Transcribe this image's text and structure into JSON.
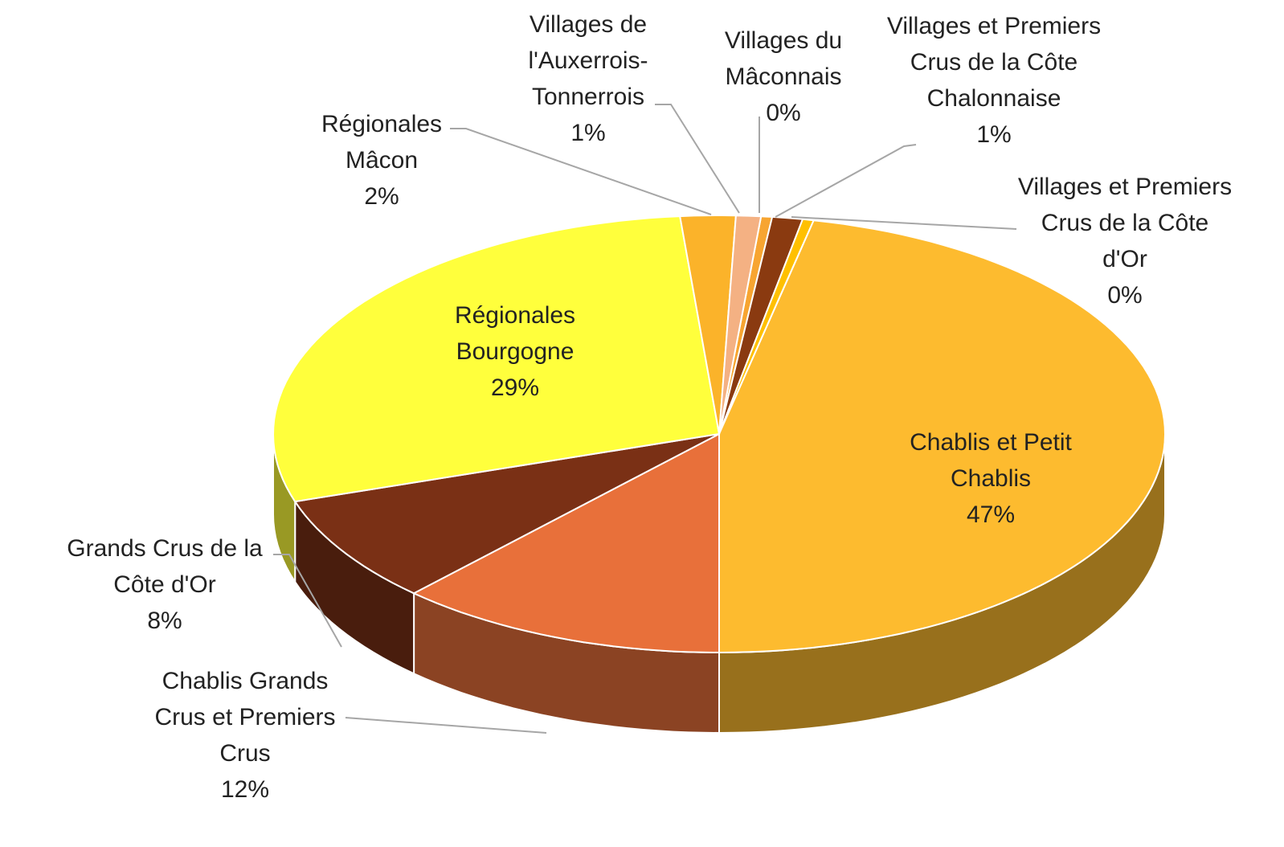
{
  "chart_data": {
    "type": "pie3d",
    "categories": [
      "Villages du Mâconnais",
      "Villages et Premiers Crus de la Côte Chalonnaise",
      "Villages et Premiers Crus de la Côte d'Or",
      "Chablis et Petit Chablis",
      "Chablis Grands Crus et Premiers Crus",
      "Grands Crus de la Côte d'Or",
      "Régionales Bourgogne",
      "Régionales Mâcon",
      "Villages de l'Auxerrois-Tonnerrois"
    ],
    "values": [
      0.4,
      1.1,
      0.4,
      46.6,
      12,
      8,
      28.6,
      2,
      0.9
    ],
    "value_labels": [
      "0%",
      "1%",
      "0%",
      "47%",
      "12%",
      "8%",
      "29%",
      "2%",
      "1%"
    ],
    "colors": [
      "#f7a531",
      "#8a3a10",
      "#ffc000",
      "#fdbb2f",
      "#e8703a",
      "#7a3015",
      "#ffff3c",
      "#fbb32a",
      "#f4b183"
    ]
  }
}
